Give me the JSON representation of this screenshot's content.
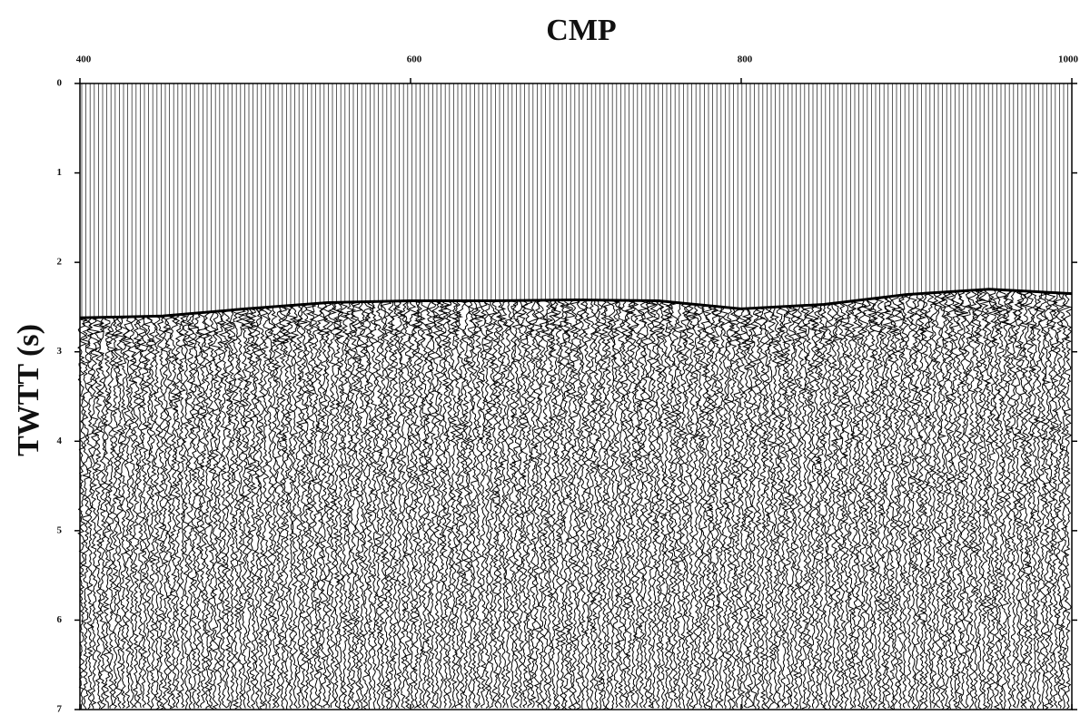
{
  "chart_data": {
    "type": "seismic",
    "title": "CMP",
    "y_label": "TWTT (s)",
    "x": [
      400,
      450,
      500,
      550,
      600,
      650,
      700,
      750,
      800,
      850,
      900,
      950,
      1000
    ],
    "values": [
      2.62,
      2.6,
      2.52,
      2.45,
      2.43,
      2.43,
      2.42,
      2.43,
      2.52,
      2.47,
      2.36,
      2.3,
      2.35
    ],
    "xlim": [
      400,
      1000
    ],
    "xticks": [
      400,
      600,
      800,
      1000
    ],
    "ylim": [
      0,
      7
    ],
    "yticks": [
      0,
      1,
      2,
      3,
      4,
      5,
      6,
      7
    ],
    "y_reversed": true,
    "color": "#000000"
  }
}
